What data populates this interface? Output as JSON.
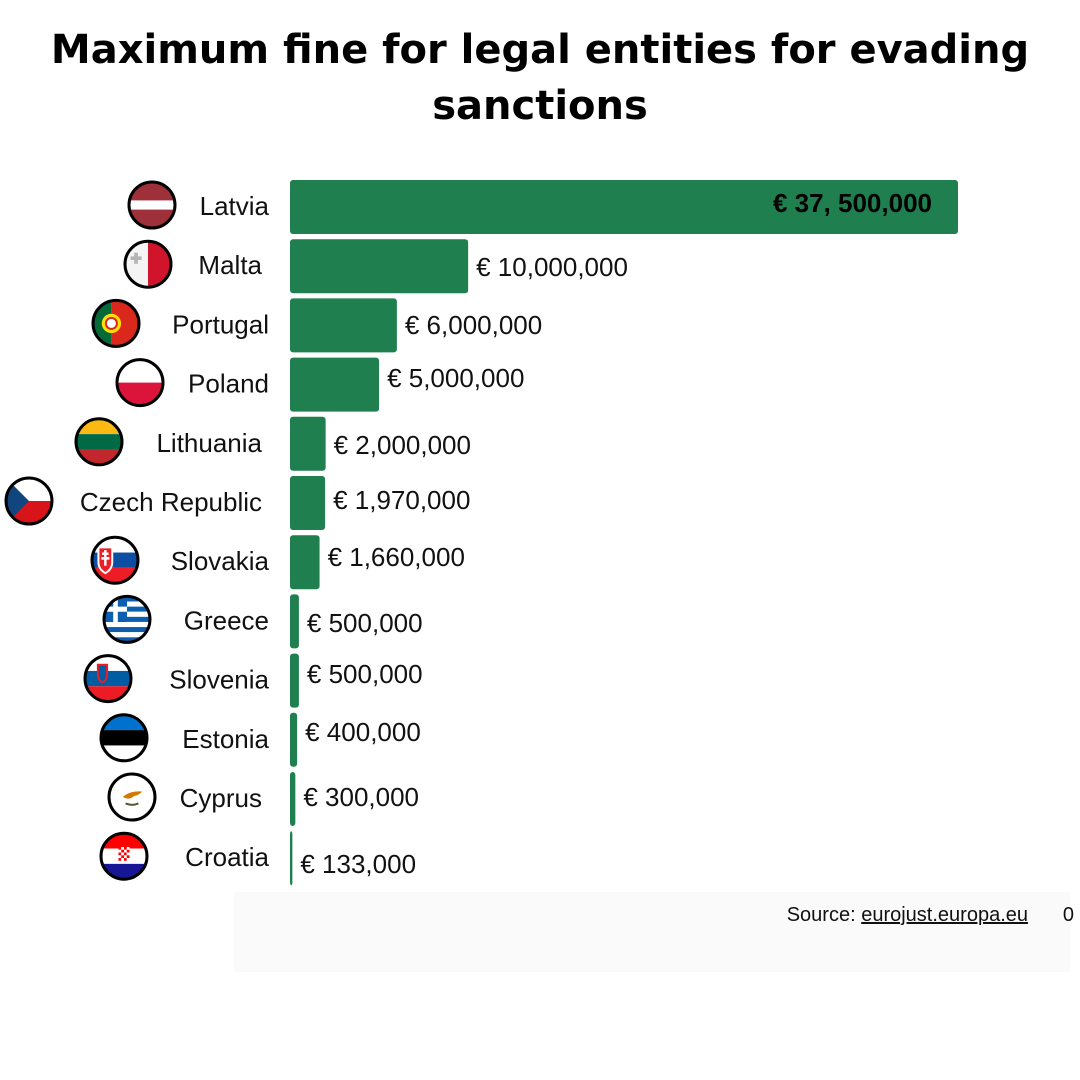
{
  "title": "Maximum fine for legal entities for evading sanctions",
  "source": {
    "prefix": "Source:",
    "link": "eurojust.europa.eu",
    "stray": "0"
  },
  "colors": {
    "bar": "#1f7f4f",
    "background": "#ffffff"
  },
  "chart_data": {
    "type": "bar",
    "orientation": "horizontal",
    "title": "Maximum fine for legal entities for evading sanctions",
    "xlabel": "",
    "ylabel": "",
    "grid": false,
    "categories": [
      "Latvia",
      "Malta",
      "Portugal",
      "Poland",
      "Lithuania",
      "Czech Republic",
      "Slovakia",
      "Greece",
      "Slovenia",
      "Estonia",
      "Cyprus",
      "Croatia"
    ],
    "values": [
      37500000,
      10000000,
      6000000,
      5000000,
      2000000,
      1970000,
      1660000,
      500000,
      500000,
      400000,
      300000,
      133000
    ],
    "value_labels": [
      "€ 37, 500,000",
      "€ 10,000,000",
      "€ 6,000,000",
      "€ 5,000,000",
      "€ 2,000,000",
      "€ 1,970,000",
      "€ 1,660,000",
      "€ 500,000",
      "€ 500,000",
      "€ 400,000",
      "€ 300,000",
      "€ 133,000"
    ],
    "flags": [
      "latvia-flag-icon",
      "malta-flag-icon",
      "portugal-flag-icon",
      "poland-flag-icon",
      "lithuania-flag-icon",
      "czech-republic-flag-icon",
      "slovakia-flag-icon",
      "greece-flag-icon",
      "slovenia-flag-icon",
      "estonia-flag-icon",
      "cyprus-flag-icon",
      "croatia-flag-icon"
    ]
  }
}
